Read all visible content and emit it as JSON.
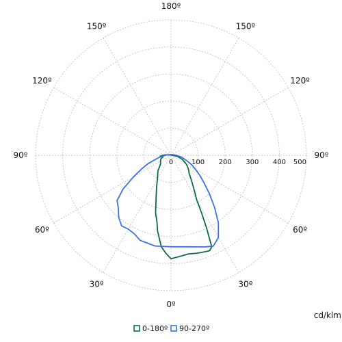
{
  "chart_data": {
    "type": "polar-line",
    "unit": "cd/klm",
    "radial_ticks": [
      0,
      100,
      200,
      300,
      400,
      500
    ],
    "radial_max": 500,
    "angle_labels": [
      {
        "text": "180º",
        "angle": 180
      },
      {
        "text": "150º",
        "angle": 150
      },
      {
        "text": "150º",
        "angle": -150
      },
      {
        "text": "120º",
        "angle": 120
      },
      {
        "text": "120º",
        "angle": -120
      },
      {
        "text": "90º",
        "angle": 90
      },
      {
        "text": "90º",
        "angle": -90
      },
      {
        "text": "60º",
        "angle": 60
      },
      {
        "text": "60º",
        "angle": -60
      },
      {
        "text": "30º",
        "angle": 30
      },
      {
        "text": "30º",
        "angle": -30
      },
      {
        "text": "0º",
        "angle": 0
      }
    ],
    "series": [
      {
        "name": "0-180º",
        "color": "#0b6e3a",
        "points": [
          [
            0,
            382
          ],
          [
            5,
            375
          ],
          [
            10,
            370
          ],
          [
            15,
            374
          ],
          [
            20,
            378
          ],
          [
            22,
            380
          ],
          [
            24,
            370
          ],
          [
            26,
            300
          ],
          [
            28,
            240
          ],
          [
            30,
            190
          ],
          [
            35,
            145
          ],
          [
            40,
            115
          ],
          [
            45,
            95
          ],
          [
            50,
            85
          ],
          [
            55,
            75
          ],
          [
            60,
            65
          ],
          [
            70,
            45
          ],
          [
            80,
            25
          ],
          [
            90,
            5
          ],
          [
            120,
            2
          ],
          [
            180,
            3
          ],
          [
            -100,
            5
          ],
          [
            -95,
            20
          ],
          [
            -90,
            30
          ],
          [
            -85,
            40
          ],
          [
            -80,
            30
          ],
          [
            -70,
            40
          ],
          [
            -60,
            45
          ],
          [
            -50,
            50
          ],
          [
            -40,
            75
          ],
          [
            -30,
            100
          ],
          [
            -25,
            125
          ],
          [
            -20,
            160
          ],
          [
            -15,
            220
          ],
          [
            -12,
            250
          ],
          [
            -10,
            285
          ],
          [
            -6,
            340
          ],
          [
            -3,
            362
          ],
          [
            0,
            382
          ]
        ]
      },
      {
        "name": "90-270º",
        "color": "#3b6fe8",
        "points": [
          [
            0,
            338
          ],
          [
            10,
            343
          ],
          [
            20,
            360
          ],
          [
            25,
            370
          ],
          [
            30,
            350
          ],
          [
            35,
            305
          ],
          [
            40,
            250
          ],
          [
            45,
            200
          ],
          [
            50,
            160
          ],
          [
            55,
            130
          ],
          [
            60,
            105
          ],
          [
            65,
            85
          ],
          [
            70,
            65
          ],
          [
            80,
            40
          ],
          [
            90,
            20
          ],
          [
            120,
            5
          ],
          [
            180,
            3
          ],
          [
            -120,
            5
          ],
          [
            -90,
            20
          ],
          [
            -80,
            45
          ],
          [
            -70,
            90
          ],
          [
            -65,
            120
          ],
          [
            -60,
            160
          ],
          [
            -55,
            215
          ],
          [
            -50,
            260
          ],
          [
            -45,
            275
          ],
          [
            -40,
            300
          ],
          [
            -35,
            318
          ],
          [
            -30,
            315
          ],
          [
            -25,
            320
          ],
          [
            -20,
            334
          ],
          [
            -10,
            340
          ],
          [
            0,
            338
          ]
        ]
      }
    ],
    "legend_position": "bottom-center"
  }
}
